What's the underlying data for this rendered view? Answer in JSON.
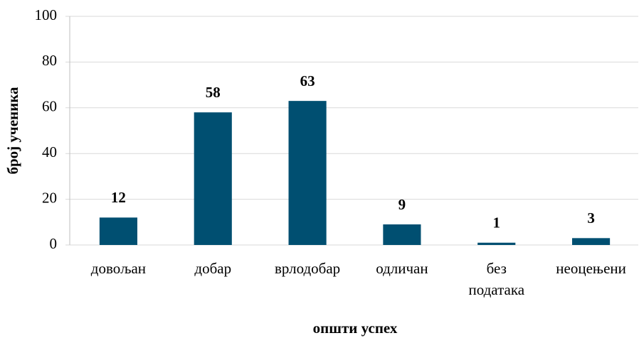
{
  "chart_data": {
    "type": "bar",
    "categories": [
      "довољан",
      "добар",
      "врлодобар",
      "одличан",
      "без података",
      "неоцењени"
    ],
    "values": [
      12,
      58,
      63,
      9,
      1,
      3
    ],
    "color": "#004f71",
    "ylim": [
      0,
      100
    ],
    "yticks": [
      0,
      20,
      40,
      60,
      80,
      100
    ],
    "grid": true,
    "x_label": "општи успех",
    "y_label": "број ученика"
  }
}
